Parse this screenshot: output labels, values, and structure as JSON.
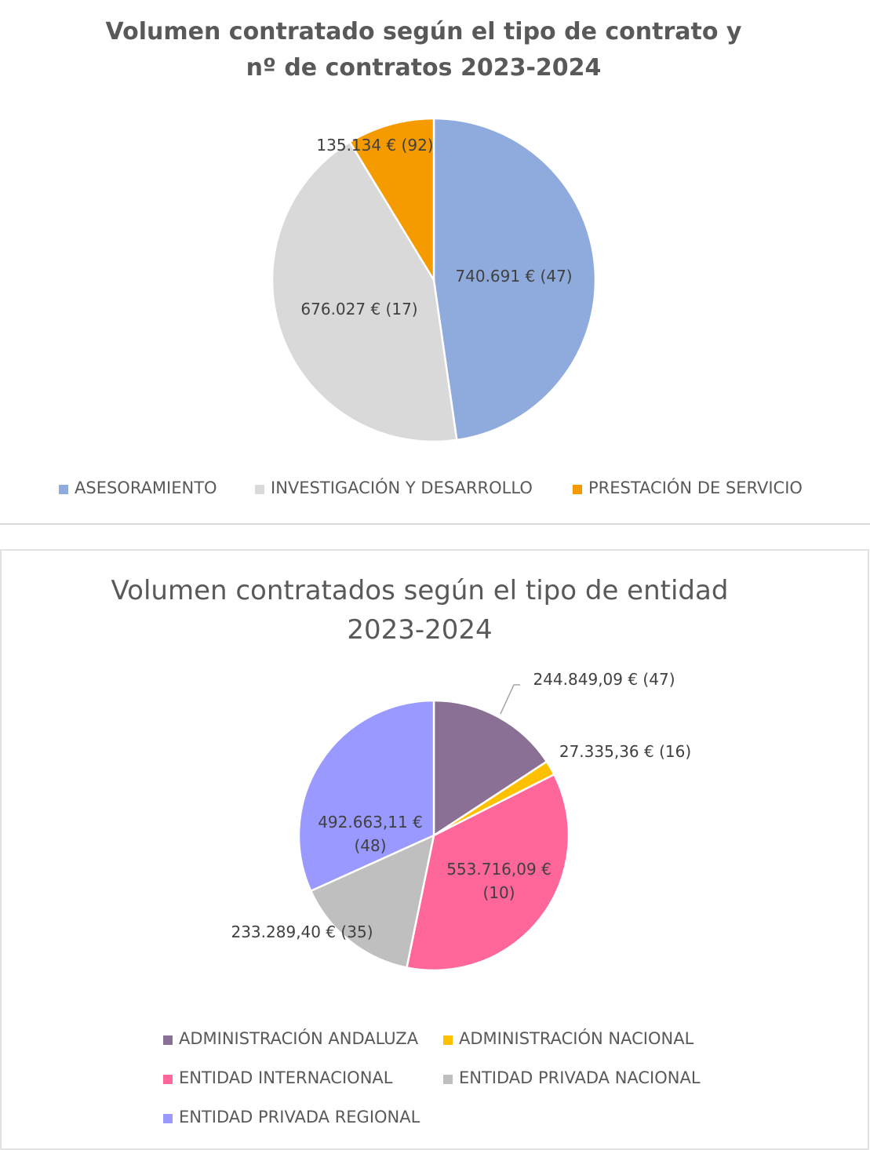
{
  "chart_data": [
    {
      "type": "pie",
      "title": "Volumen contratado según el tipo de contrato y nº de contratos 2023-2024",
      "categories": [
        "ASESORAMIENTO",
        "INVESTIGACIÓN Y DESARROLLO",
        "PRESTACIÓN DE SERVICIO"
      ],
      "values": [
        740691,
        676027,
        135134
      ],
      "value_labels": [
        "740.691 € (47)",
        "676.027 € (17)",
        "135.134 € (92)"
      ],
      "colors": [
        "#8faadc",
        "#d9d9d9",
        "#f59b00"
      ]
    },
    {
      "type": "pie",
      "title": "Volumen contratados según el tipo de entidad 2023-2024",
      "categories": [
        "ADMINISTRACIÓN ANDALUZA",
        "ADMINISTRACIÓN NACIONAL",
        "ENTIDAD INTERNACIONAL",
        "ENTIDAD PRIVADA NACIONAL",
        "ENTIDAD PRIVADA REGIONAL"
      ],
      "values": [
        244849.09,
        27335.36,
        553716.09,
        233289.4,
        492663.11
      ],
      "value_labels": [
        "244.849,09 € (47)",
        "27.335,36 € (16)",
        "553.716,09 € (10)",
        "233.289,40 € (35)",
        "492.663,11 € (48)"
      ],
      "colors": [
        "#8b7096",
        "#ffc000",
        "#ff6699",
        "#bfbfbf",
        "#9999ff"
      ]
    }
  ]
}
